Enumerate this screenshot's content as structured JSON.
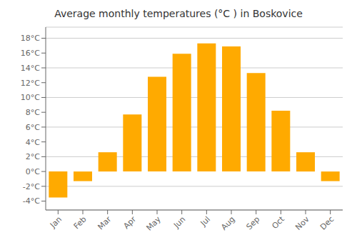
{
  "chart_data": {
    "type": "bar",
    "title": "Average monthly temperatures (°C ) in Boskovice",
    "categories": [
      "Jan",
      "Feb",
      "Mar",
      "Apr",
      "May",
      "Jun",
      "Jul",
      "Aug",
      "Sep",
      "Oct",
      "Nov",
      "Dec"
    ],
    "values": [
      -3.5,
      -1.3,
      2.6,
      7.7,
      12.8,
      15.9,
      17.3,
      16.9,
      13.3,
      8.2,
      2.6,
      -1.3
    ],
    "color": "#FFAA00",
    "ylim": [
      -5.2,
      19.5
    ],
    "yticks": [
      {
        "value": -4,
        "label": "-4°C"
      },
      {
        "value": -2,
        "label": "-2°C"
      },
      {
        "value": 0,
        "label": "0°C"
      },
      {
        "value": 2,
        "label": "2°C"
      },
      {
        "value": 4,
        "label": "4°C"
      },
      {
        "value": 6,
        "label": "6°C"
      },
      {
        "value": 8,
        "label": "8°C"
      },
      {
        "value": 10,
        "label": "10°C"
      },
      {
        "value": 12,
        "label": "12°C"
      },
      {
        "value": 14,
        "label": "14°C"
      },
      {
        "value": 16,
        "label": "16°C"
      },
      {
        "value": 18,
        "label": "18°C"
      }
    ],
    "grid": true
  }
}
